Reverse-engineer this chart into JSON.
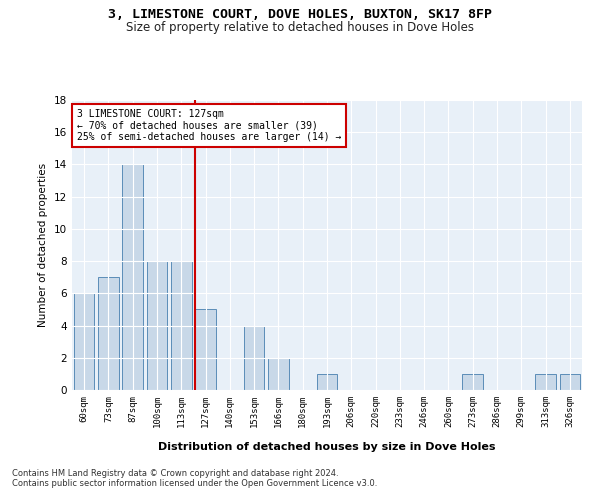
{
  "title": "3, LIMESTONE COURT, DOVE HOLES, BUXTON, SK17 8FP",
  "subtitle": "Size of property relative to detached houses in Dove Holes",
  "xlabel": "Distribution of detached houses by size in Dove Holes",
  "ylabel": "Number of detached properties",
  "categories": [
    "60sqm",
    "73sqm",
    "87sqm",
    "100sqm",
    "113sqm",
    "127sqm",
    "140sqm",
    "153sqm",
    "166sqm",
    "180sqm",
    "193sqm",
    "206sqm",
    "220sqm",
    "233sqm",
    "246sqm",
    "260sqm",
    "273sqm",
    "286sqm",
    "299sqm",
    "313sqm",
    "326sqm"
  ],
  "values": [
    6,
    7,
    14,
    8,
    8,
    5,
    0,
    4,
    2,
    0,
    1,
    0,
    0,
    0,
    0,
    0,
    1,
    0,
    0,
    1,
    1
  ],
  "bar_color": "#c8d8e8",
  "bar_edgecolor": "#5b8db8",
  "marker_index": 5,
  "marker_color": "#cc0000",
  "annotation_text": "3 LIMESTONE COURT: 127sqm\n← 70% of detached houses are smaller (39)\n25% of semi-detached houses are larger (14) →",
  "annotation_box_color": "#ffffff",
  "annotation_box_edgecolor": "#cc0000",
  "footer_line1": "Contains HM Land Registry data © Crown copyright and database right 2024.",
  "footer_line2": "Contains public sector information licensed under the Open Government Licence v3.0.",
  "bg_color": "#e8f0f8",
  "ylim": [
    0,
    18
  ],
  "yticks": [
    0,
    2,
    4,
    6,
    8,
    10,
    12,
    14,
    16,
    18
  ]
}
